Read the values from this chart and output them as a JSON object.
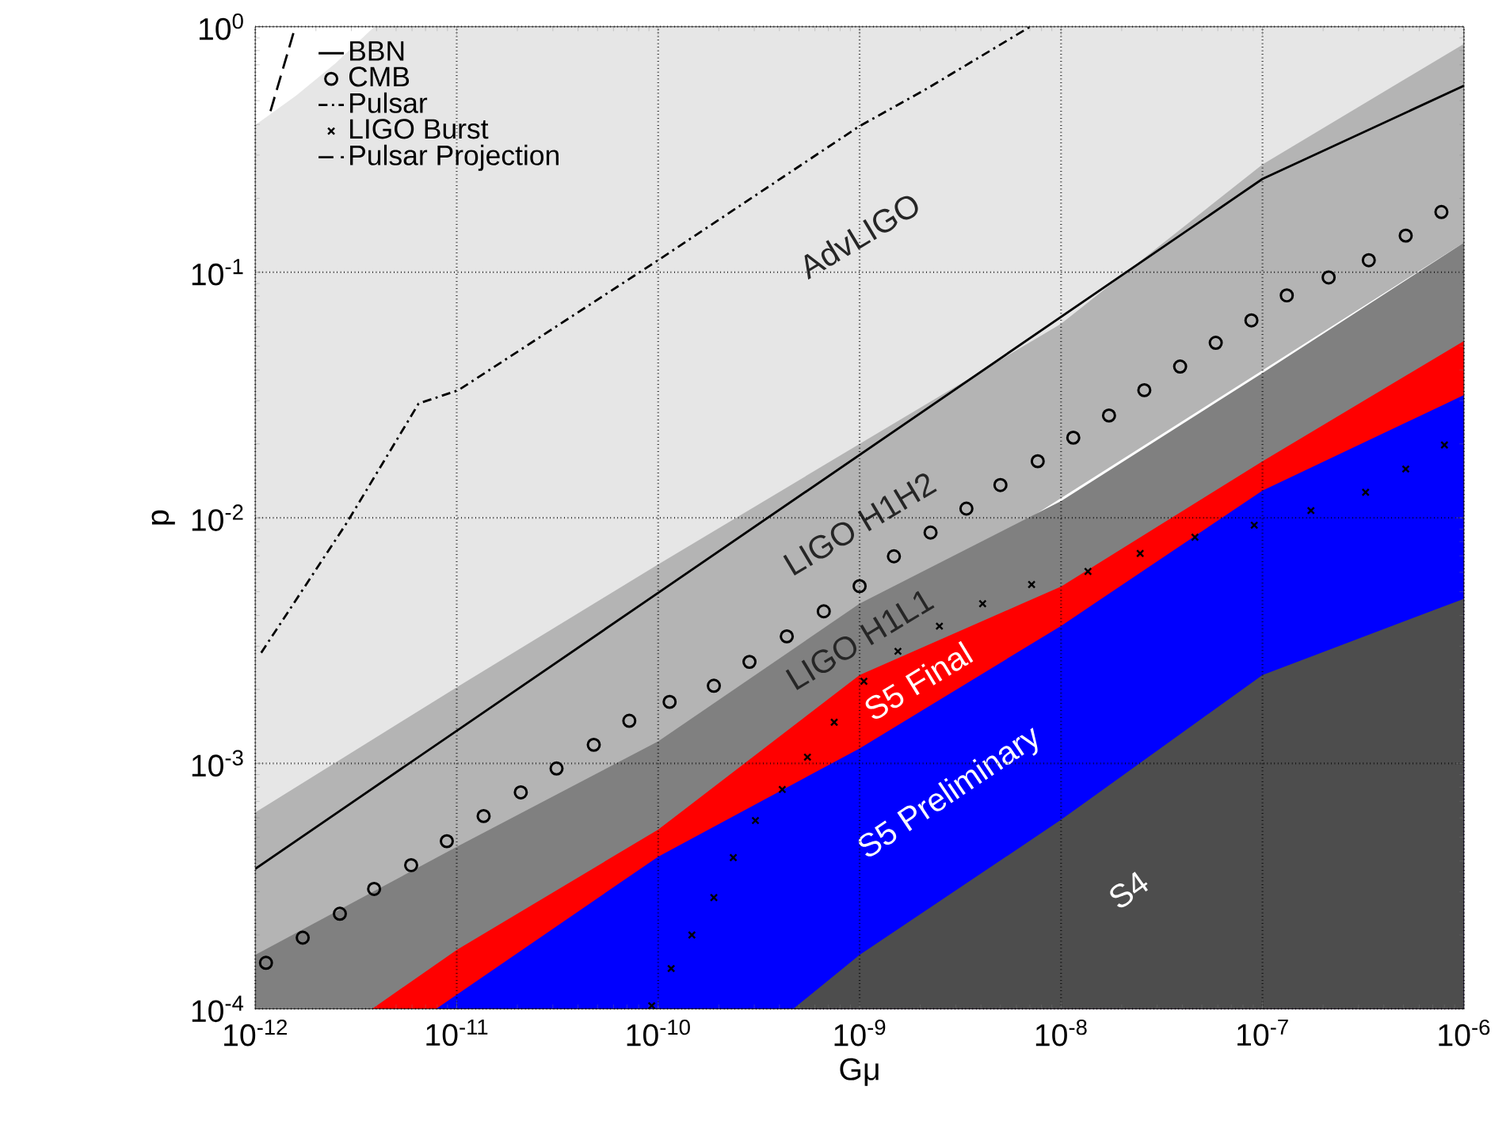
{
  "chart_data": {
    "type": "line",
    "xlabel": "Gμ",
    "ylabel": "p",
    "log": "xy",
    "grid": true,
    "legend": "top left",
    "xlim": [
      1e-12,
      1e-06
    ],
    "ylim": [
      0.0001,
      1
    ],
    "xticks": [
      {
        "value": 1e-12,
        "label": "10$^{-12}$"
      },
      {
        "value": 1e-11,
        "label": "10$^{-11}$"
      },
      {
        "value": 1e-10,
        "label": "10$^{-10}$"
      },
      {
        "value": 1e-09,
        "label": "10$^{-9}$"
      },
      {
        "value": 1e-08,
        "label": "10$^{-8}$"
      },
      {
        "value": 1e-07,
        "label": "10$^{-7}$"
      },
      {
        "value": 1e-06,
        "label": "10$^{-6}$"
      }
    ],
    "yticks": [
      {
        "value": 0.0001,
        "label": "10$^{-4}$"
      },
      {
        "value": 0.001,
        "label": "10$^{-3}$"
      },
      {
        "value": 0.01,
        "label": "10$^{-2}$"
      },
      {
        "value": 0.1,
        "label": "10$^{-1}$"
      },
      {
        "value": 1,
        "label": "10$^{0}$"
      }
    ],
    "series": [
      {
        "type": "area",
        "name": "AdvLIGO",
        "color": "#e6e6e6",
        "x": [
          1e-12,
          1.6e-12,
          2.5e-12,
          3.9e-12,
          1e-06
        ],
        "values": [
          0.398,
          0.525,
          0.71,
          1,
          1
        ]
      },
      {
        "type": "area",
        "name": "LIGO H1H2",
        "color": "#b4b4b4",
        "x": [
          1e-12,
          1e-11,
          1e-10,
          1e-09,
          1e-08,
          1e-07,
          1e-06
        ],
        "values": [
          0.000631,
          0.00204,
          0.00646,
          0.02,
          0.0617,
          0.275,
          0.851
        ]
      },
      {
        "type": "area",
        "name": "LIGO H1L1",
        "color": "#808080",
        "x": [
          1e-12,
          1e-11,
          1e-10,
          1e-09,
          1e-08,
          1e-07,
          1e-06
        ],
        "values": [
          0.000166,
          0.000457,
          0.00123,
          0.00447,
          0.0117,
          0.0389,
          0.132
        ]
      },
      {
        "type": "area",
        "name": "S5 Final",
        "color": "#ff0000",
        "x": [
          3.8e-12,
          1e-11,
          1e-10,
          1e-09,
          1e-08,
          1e-07,
          1e-06
        ],
        "values": [
          0.0001,
          0.000174,
          0.000537,
          0.00229,
          0.00525,
          0.017,
          0.0525
        ]
      },
      {
        "type": "area",
        "name": "S5 Preliminary",
        "color": "#0000ff",
        "x": [
          7.9e-12,
          1e-10,
          1e-09,
          1e-08,
          1e-07,
          1e-06
        ],
        "values": [
          0.0001,
          0.000417,
          0.00115,
          0.00363,
          0.0129,
          0.0316
        ]
      },
      {
        "type": "area",
        "name": "S4",
        "color": "#4d4d4d",
        "x": [
          4.68e-10,
          1e-09,
          1e-08,
          1e-07,
          1e-06
        ],
        "values": [
          0.0001,
          0.000166,
          0.000589,
          0.00229,
          0.00468
        ]
      },
      {
        "name": "BBN",
        "color": "#000000",
        "line_style": "solid",
        "marker": "none",
        "x": [
          1e-12,
          1e-07,
          1e-06
        ],
        "values": [
          0.000372,
          0.24,
          0.575
        ]
      },
      {
        "type": "scatter",
        "name": "CMB",
        "color": "#000000",
        "marker": "circle",
        "x": [
          1.13e-12,
          1.72e-12,
          2.63e-12,
          3.89e-12,
          5.94e-12,
          8.93e-12,
          1.36e-11,
          2.08e-11,
          3.13e-11,
          4.79e-11,
          7.19e-11,
          1.14e-10,
          1.89e-10,
          2.84e-10,
          4.35e-10,
          6.64e-10,
          1e-09,
          1.48e-09,
          2.25e-09,
          3.39e-09,
          5e-09,
          7.66e-09,
          1.15e-08,
          1.73e-08,
          2.59e-08,
          3.9e-08,
          5.86e-08,
          8.81e-08,
          1.32e-07,
          2.13e-07,
          3.37e-07,
          5.14e-07,
          7.73e-07
        ],
        "values": [
          0.000154,
          0.000195,
          0.000244,
          0.000308,
          0.000385,
          0.000482,
          0.00061,
          0.000762,
          0.000953,
          0.00119,
          0.00149,
          0.00178,
          0.00207,
          0.00259,
          0.00329,
          0.00416,
          0.00527,
          0.00697,
          0.00871,
          0.0109,
          0.0136,
          0.017,
          0.0212,
          0.0261,
          0.0331,
          0.0413,
          0.0516,
          0.0637,
          0.0805,
          0.0953,
          0.112,
          0.141,
          0.176
        ]
      },
      {
        "name": "Pulsar",
        "color": "#000000",
        "line_style": "dashdot",
        "marker": "none",
        "x": [
          1.07e-12,
          2.86e-12,
          6.47e-12,
          1.02e-11,
          1e-10,
          1e-09,
          2.14e-09,
          7.03e-09
        ],
        "values": [
          0.00282,
          0.0096,
          0.0292,
          0.0331,
          0.112,
          0.394,
          0.557,
          1
        ]
      },
      {
        "type": "scatter",
        "name": "LIGO Burst",
        "color": "#000000",
        "marker": "cross",
        "x": [
          9.29e-11,
          1.16e-10,
          1.47e-10,
          1.89e-10,
          2.36e-10,
          3.04e-10,
          4.13e-10,
          5.51e-10,
          7.48e-10,
          1.05e-09,
          1.55e-09,
          2.49e-09,
          4.08e-09,
          7.14e-09,
          1.36e-08,
          2.47e-08,
          4.62e-08,
          9.1e-08,
          1.74e-07,
          3.25e-07,
          5.14e-07,
          8e-07
        ],
        "values": [
          0.000103,
          0.000146,
          0.0002,
          0.000284,
          0.000413,
          0.000585,
          0.000783,
          0.00106,
          0.00147,
          0.00216,
          0.00286,
          0.00362,
          0.00447,
          0.00535,
          0.00605,
          0.00716,
          0.00834,
          0.00933,
          0.0107,
          0.0127,
          0.0158,
          0.0198
        ]
      },
      {
        "name": "Pulsar Projection",
        "color": "#000000",
        "line_style": "dashed",
        "marker": "none",
        "x": [
          1.19e-12,
          1.58e-12
        ],
        "values": [
          0.453,
          1
        ]
      }
    ]
  }
}
